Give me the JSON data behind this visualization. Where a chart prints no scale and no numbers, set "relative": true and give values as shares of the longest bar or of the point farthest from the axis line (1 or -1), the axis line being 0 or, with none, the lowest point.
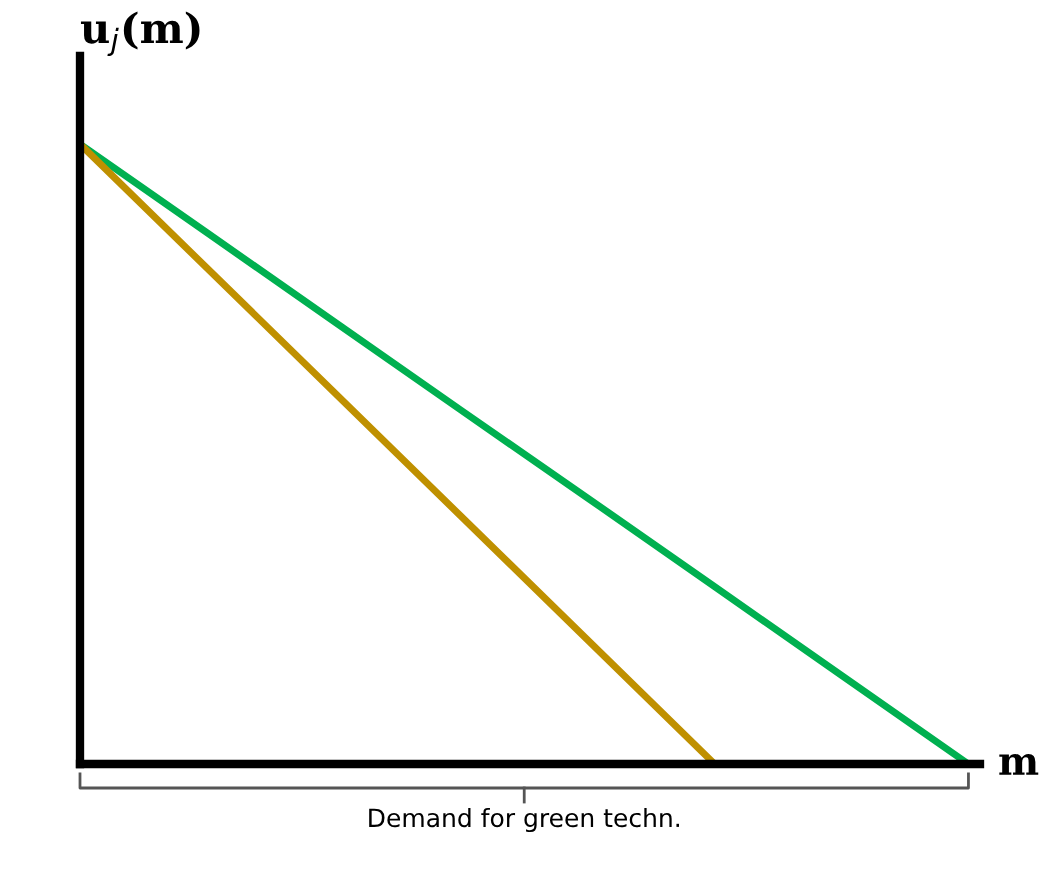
{
  "chart_data": {
    "type": "line",
    "relative": true,
    "ylabel": "u$_{j}$(m)",
    "xlabel": "m",
    "annotations": [
      "Demand for green techn."
    ],
    "legend": false,
    "marker": "none",
    "line_style": "solid",
    "categories": [
      null,
      null,
      null,
      null,
      null,
      null,
      null,
      null
    ],
    "series": [
      {
        "color": "#00b050",
        "values": [
          1,
          0.857,
          0.714,
          0.571,
          0.429,
          0.286,
          0.143,
          0
        ]
      },
      {
        "color": "#bf9000",
        "values": [
          1,
          0.8,
          0.6,
          0.4,
          0.2,
          0,
          null,
          null
        ]
      }
    ]
  }
}
